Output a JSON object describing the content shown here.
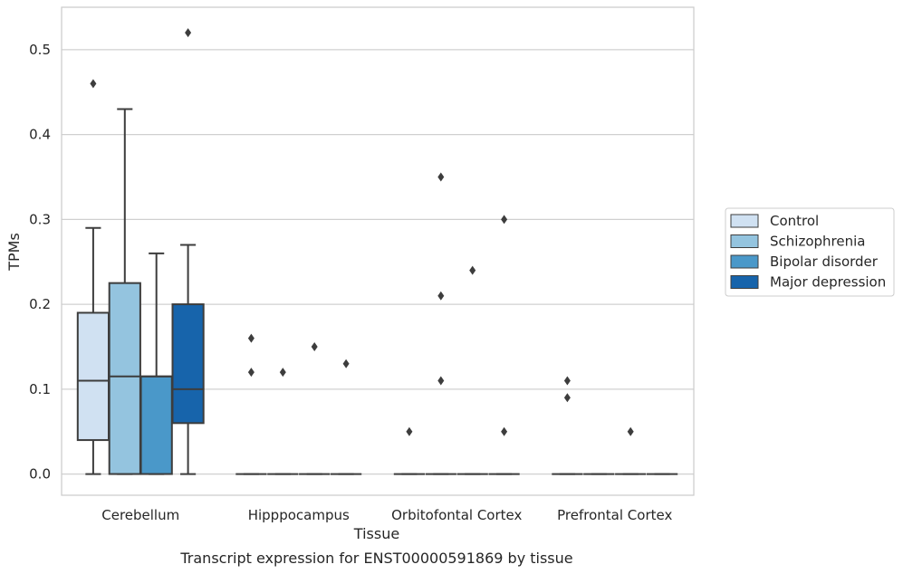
{
  "chart_data": {
    "type": "box",
    "title": "",
    "caption": "Transcript expression for ENST00000591869 by tissue",
    "xlabel": "Tissue",
    "ylabel": "TPMs",
    "ylim": [
      -0.025,
      0.55
    ],
    "yticks": [
      0.0,
      0.1,
      0.2,
      0.3,
      0.4,
      0.5
    ],
    "ytick_labels": [
      "0.0",
      "0.1",
      "0.2",
      "0.3",
      "0.4",
      "0.5"
    ],
    "grid": "horizontal",
    "legend_position": "right",
    "categories": [
      "Cerebellum",
      "Hipppocampus",
      "Orbitofontal Cortex",
      "Prefrontal Cortex"
    ],
    "series": [
      {
        "name": "Control",
        "color": "#d0e1f2",
        "boxes": [
          {
            "whislo": 0.0,
            "q1": 0.04,
            "med": 0.11,
            "q3": 0.19,
            "whishi": 0.29,
            "fliers": [
              0.46
            ]
          },
          {
            "whislo": 0.0,
            "q1": 0.0,
            "med": 0.0,
            "q3": 0.0,
            "whishi": 0.0,
            "fliers": [
              0.12,
              0.16
            ]
          },
          {
            "whislo": 0.0,
            "q1": 0.0,
            "med": 0.0,
            "q3": 0.0,
            "whishi": 0.0,
            "fliers": [
              0.05
            ]
          },
          {
            "whislo": 0.0,
            "q1": 0.0,
            "med": 0.0,
            "q3": 0.0,
            "whishi": 0.0,
            "fliers": [
              0.09,
              0.11
            ]
          }
        ]
      },
      {
        "name": "Schizophrenia",
        "color": "#94c4df",
        "boxes": [
          {
            "whislo": 0.0,
            "q1": 0.0,
            "med": 0.115,
            "q3": 0.225,
            "whishi": 0.43,
            "fliers": []
          },
          {
            "whislo": 0.0,
            "q1": 0.0,
            "med": 0.0,
            "q3": 0.0,
            "whishi": 0.0,
            "fliers": [
              0.12
            ]
          },
          {
            "whislo": 0.0,
            "q1": 0.0,
            "med": 0.0,
            "q3": 0.0,
            "whishi": 0.0,
            "fliers": [
              0.11,
              0.21,
              0.35
            ]
          },
          {
            "whislo": 0.0,
            "q1": 0.0,
            "med": 0.0,
            "q3": 0.0,
            "whishi": 0.0,
            "fliers": []
          }
        ]
      },
      {
        "name": "Bipolar disorder",
        "color": "#4a98c9",
        "boxes": [
          {
            "whislo": 0.0,
            "q1": 0.0,
            "med": 0.115,
            "q3": 0.115,
            "whishi": 0.26,
            "fliers": []
          },
          {
            "whislo": 0.0,
            "q1": 0.0,
            "med": 0.0,
            "q3": 0.0,
            "whishi": 0.0,
            "fliers": [
              0.15
            ]
          },
          {
            "whislo": 0.0,
            "q1": 0.0,
            "med": 0.0,
            "q3": 0.0,
            "whishi": 0.0,
            "fliers": [
              0.24
            ]
          },
          {
            "whislo": 0.0,
            "q1": 0.0,
            "med": 0.0,
            "q3": 0.0,
            "whishi": 0.0,
            "fliers": [
              0.05
            ]
          }
        ]
      },
      {
        "name": "Major depression",
        "color": "#1764ab",
        "boxes": [
          {
            "whislo": 0.0,
            "q1": 0.06,
            "med": 0.1,
            "q3": 0.2,
            "whishi": 0.27,
            "fliers": [
              0.52
            ]
          },
          {
            "whislo": 0.0,
            "q1": 0.0,
            "med": 0.0,
            "q3": 0.0,
            "whishi": 0.0,
            "fliers": [
              0.13
            ]
          },
          {
            "whislo": 0.0,
            "q1": 0.0,
            "med": 0.0,
            "q3": 0.0,
            "whishi": 0.0,
            "fliers": [
              0.05,
              0.3
            ]
          },
          {
            "whislo": 0.0,
            "q1": 0.0,
            "med": 0.0,
            "q3": 0.0,
            "whishi": 0.0,
            "fliers": []
          }
        ]
      }
    ]
  }
}
